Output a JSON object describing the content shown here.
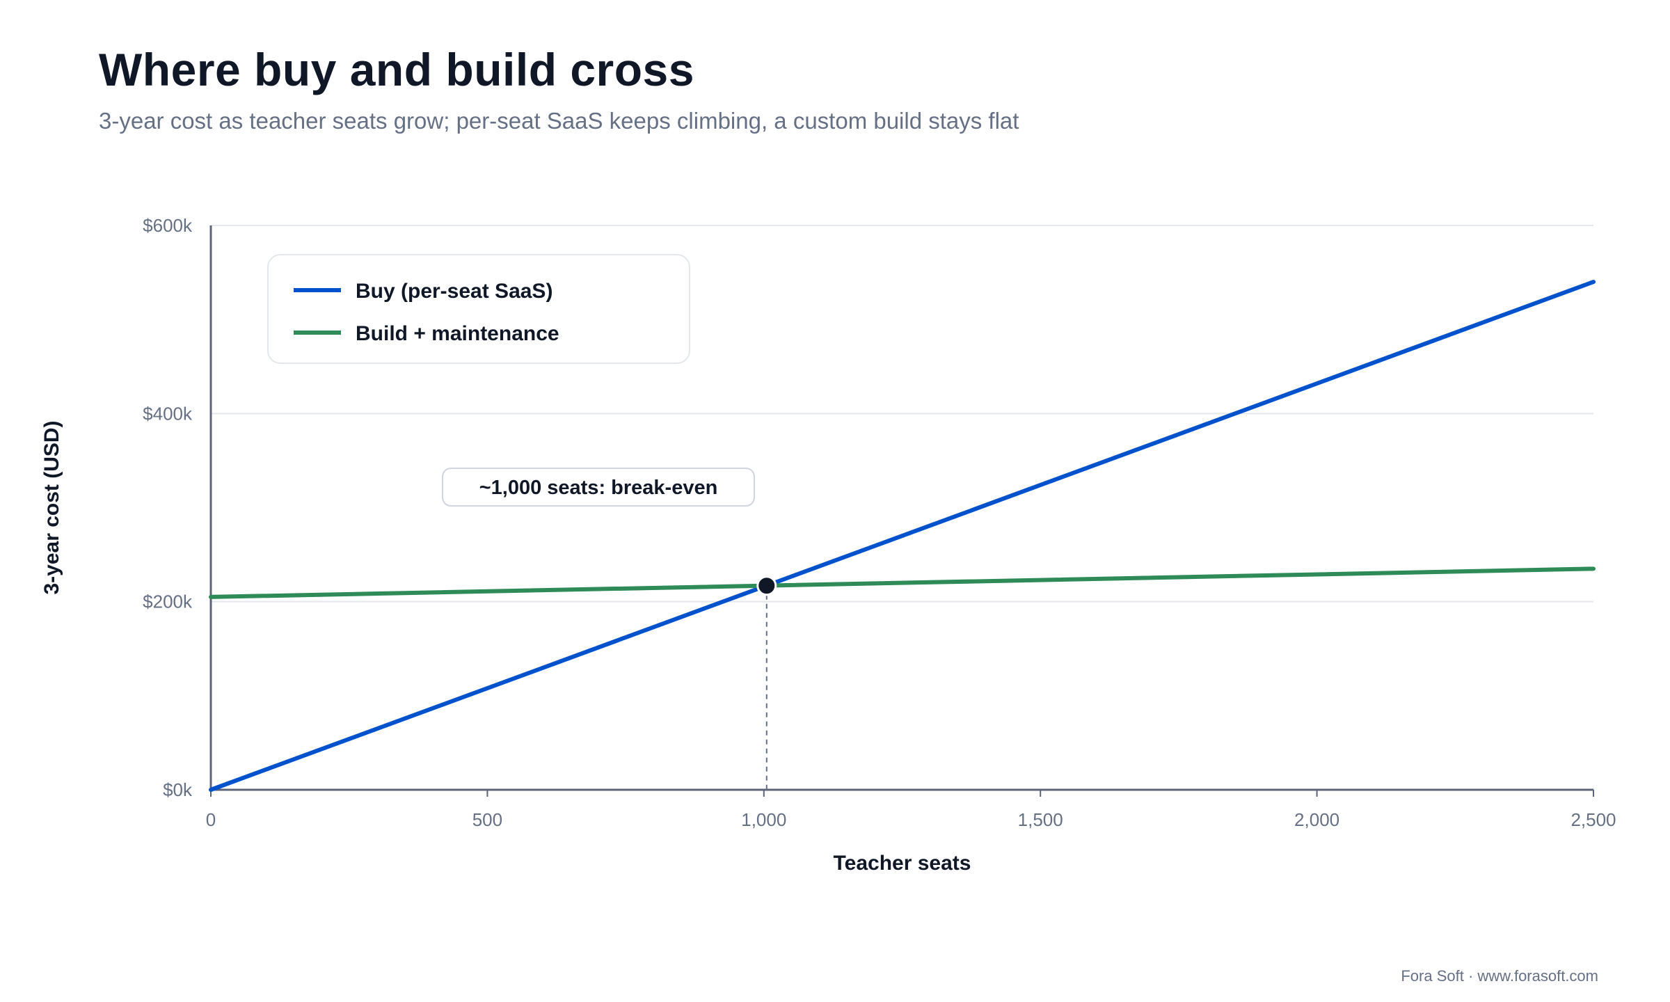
{
  "header": {
    "title": "Where buy and build cross",
    "subtitle": "3-year cost as teacher seats grow; per-seat SaaS keeps climbing, a custom build stays flat"
  },
  "footer": {
    "credit": "Fora Soft · www.forasoft.com"
  },
  "colors": {
    "buy": "#0052CC",
    "build": "#2E8B57",
    "axis": "#5B6478",
    "grid": "#E4E7EC",
    "marker": "#101828"
  },
  "chart_data": {
    "type": "line",
    "xlabel": "Teacher seats",
    "ylabel": "3-year cost (USD)",
    "xlim": [
      0,
      2500
    ],
    "ylim": [
      0,
      600000
    ],
    "x_ticks": [
      {
        "value": 0,
        "label": "0"
      },
      {
        "value": 500,
        "label": "500"
      },
      {
        "value": 1000,
        "label": "1,000"
      },
      {
        "value": 1500,
        "label": "1,500"
      },
      {
        "value": 2000,
        "label": "2,000"
      },
      {
        "value": 2500,
        "label": "2,500"
      }
    ],
    "y_ticks": [
      {
        "value": 0,
        "label": "$0k"
      },
      {
        "value": 200000,
        "label": "$200k"
      },
      {
        "value": 400000,
        "label": "$400k"
      },
      {
        "value": 600000,
        "label": "$600k"
      }
    ],
    "grid": true,
    "legend_position": "top-left",
    "series": [
      {
        "name": "Buy (per-seat SaaS)",
        "color": "#0052CC",
        "x": [
          0,
          2500
        ],
        "y": [
          0,
          540000
        ]
      },
      {
        "name": "Build + maintenance",
        "color": "#2E8B57",
        "x": [
          0,
          2500
        ],
        "y": [
          205000,
          235000
        ]
      }
    ],
    "annotation": {
      "label": "~1,000 seats: break-even",
      "x": 1005,
      "y": 217000
    }
  }
}
